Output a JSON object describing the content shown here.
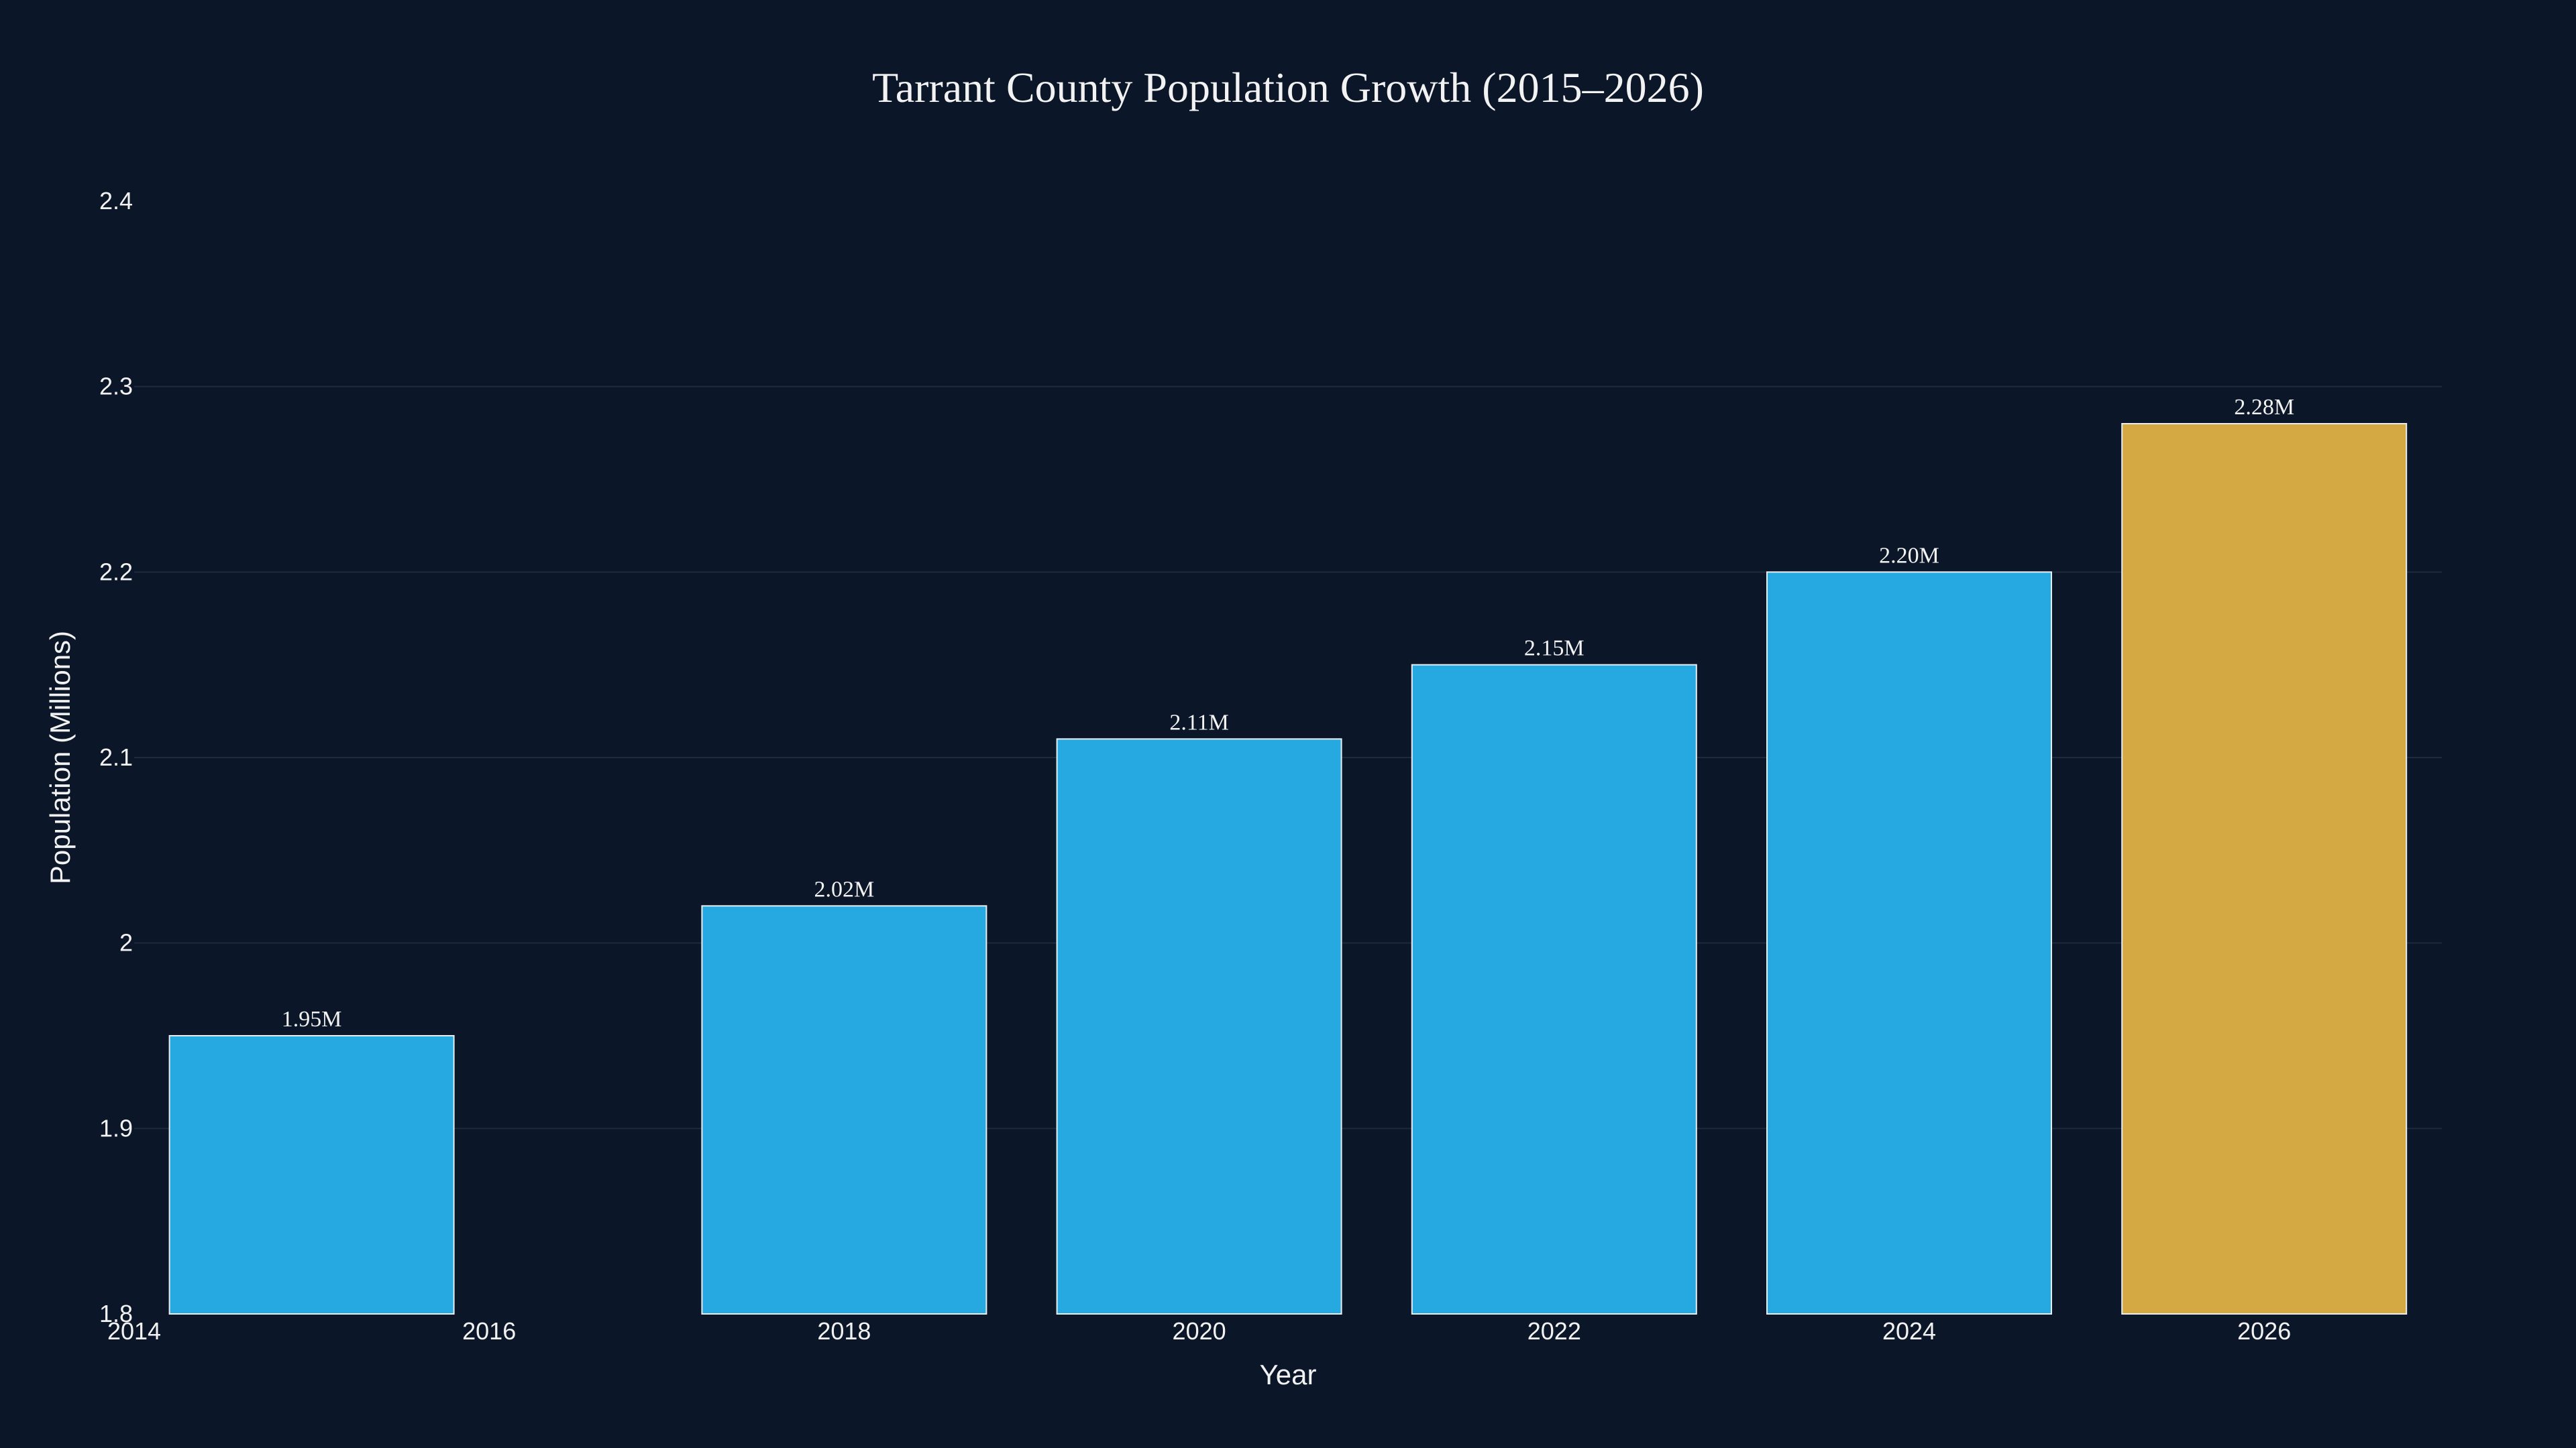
{
  "chart_data": {
    "type": "bar",
    "title": "Tarrant County Population Growth (2015–2026)",
    "xlabel": "Year",
    "ylabel": "Population (Millions)",
    "x": [
      2015,
      2018,
      2020,
      2022,
      2024,
      2026
    ],
    "values": [
      1.95,
      2.02,
      2.11,
      2.15,
      2.2,
      2.28
    ],
    "data_labels": [
      "1.95M",
      "2.02M",
      "2.11M",
      "2.15M",
      "2.20M",
      "2.28M"
    ],
    "xlim": [
      2014,
      2027
    ],
    "ylim": [
      1.8,
      2.4
    ],
    "x_ticks": [
      2014,
      2016,
      2018,
      2020,
      2022,
      2024,
      2026
    ],
    "x_tick_labels": [
      "2014",
      "2016",
      "2018",
      "2020",
      "2022",
      "2024",
      "2026"
    ],
    "y_ticks": [
      1.8,
      1.9,
      2.0,
      2.1,
      2.2,
      2.3,
      2.4
    ],
    "y_tick_labels": [
      "1.8",
      "1.9",
      "2",
      "2.1",
      "2.2",
      "2.3",
      "2.4"
    ],
    "grid": true,
    "legend": "none",
    "colors": {
      "background": "#0b1628",
      "bar": "#25a9e0",
      "highlight_bar": "#d4a843",
      "bar_outline": "#e9eef5",
      "grid": "#1f2b3d",
      "text": "#f2f2f2"
    },
    "highlight_x": 2026
  }
}
